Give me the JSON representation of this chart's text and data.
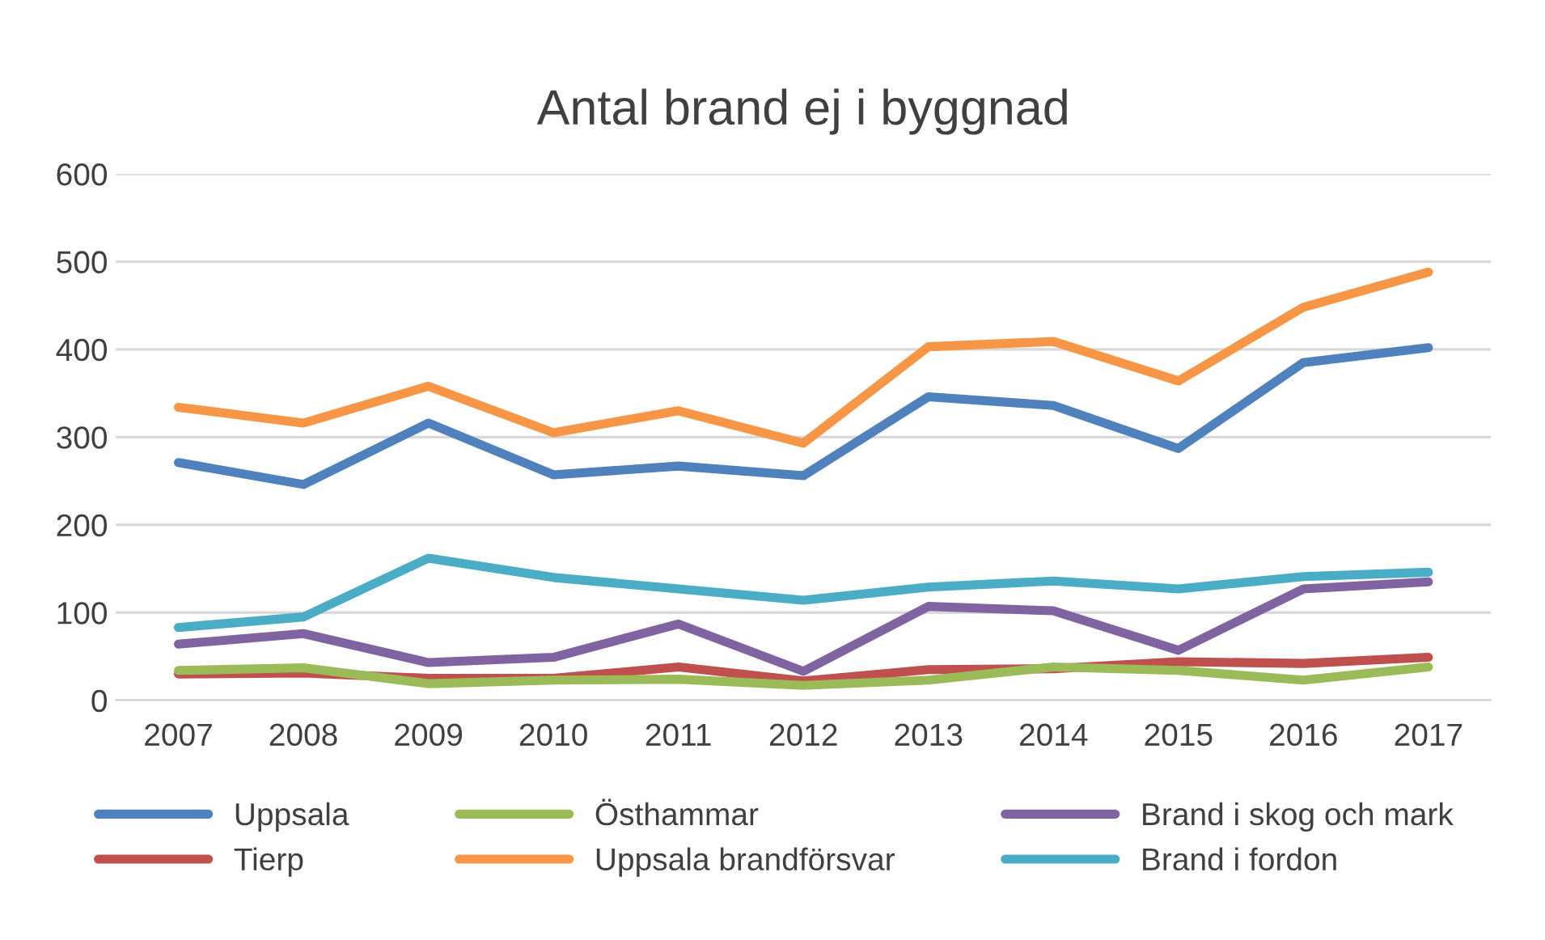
{
  "chart_data": {
    "type": "line",
    "title": "Antal brand ej i byggnad",
    "categories": [
      "2007",
      "2008",
      "2009",
      "2010",
      "2011",
      "2012",
      "2013",
      "2014",
      "2015",
      "2016",
      "2017"
    ],
    "series": [
      {
        "name": "Uppsala",
        "color": "#4f81bd",
        "values": [
          271,
          246,
          316,
          257,
          267,
          256,
          346,
          336,
          287,
          385,
          402
        ]
      },
      {
        "name": "Tierp",
        "color": "#c0504d",
        "values": [
          30,
          31,
          25,
          25,
          38,
          22,
          35,
          36,
          44,
          42,
          49
        ]
      },
      {
        "name": "Östhammar",
        "color": "#9bbb59",
        "values": [
          34,
          37,
          19,
          23,
          24,
          17,
          23,
          38,
          34,
          23,
          38
        ]
      },
      {
        "name": "Uppsala brandförsvar",
        "color": "#f79646",
        "values": [
          334,
          316,
          358,
          305,
          330,
          293,
          403,
          409,
          364,
          448,
          488
        ]
      },
      {
        "name": "Brand i skog och mark",
        "color": "#8064a2",
        "values": [
          64,
          76,
          43,
          49,
          87,
          33,
          107,
          102,
          57,
          127,
          135
        ]
      },
      {
        "name": "Brand i fordon",
        "color": "#4bacc6",
        "values": [
          83,
          95,
          162,
          140,
          127,
          114,
          129,
          136,
          127,
          141,
          146
        ]
      }
    ],
    "ylim": [
      0,
      600
    ],
    "yticks": [
      0,
      100,
      200,
      300,
      400,
      500,
      600
    ],
    "grid": "y",
    "legend": "bottom",
    "marker": "none",
    "line_style": "solid"
  }
}
